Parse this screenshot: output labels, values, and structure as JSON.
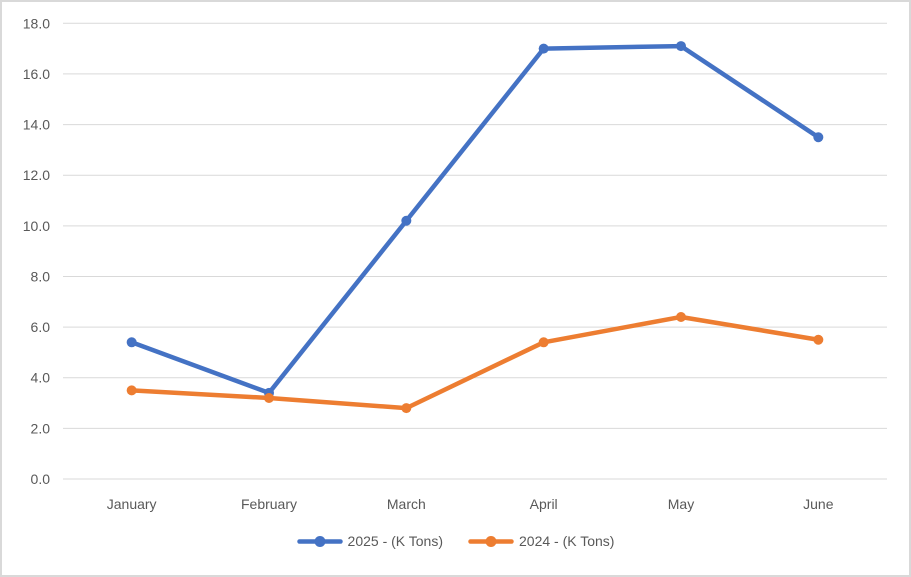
{
  "figure": {
    "background_color": "#FFFFFF",
    "border_color": "#D9D9D9",
    "gridline_color": "#D9D9D9",
    "axis_line_color": "#D9D9D9",
    "label_color": "#595959"
  },
  "chart_data": {
    "type": "line",
    "title": "",
    "xlabel": "",
    "ylabel": "",
    "categories": [
      "January",
      "February",
      "March",
      "April",
      "May",
      "June"
    ],
    "series": [
      {
        "name": "2025 - (K Tons)",
        "color": "#4472C4",
        "values": [
          5.4,
          3.4,
          10.2,
          17.0,
          17.1,
          13.5
        ]
      },
      {
        "name": "2024 - (K Tons)",
        "color": "#ED7D31",
        "values": [
          3.5,
          3.2,
          2.8,
          5.4,
          6.4,
          5.5
        ]
      }
    ],
    "ylim": [
      0,
      18
    ],
    "ytick_step": 2,
    "ytick_labels": [
      "0.0",
      "2.0",
      "4.0",
      "6.0",
      "8.0",
      "10.0",
      "12.0",
      "14.0",
      "16.0",
      "18.0"
    ],
    "grid": true,
    "legend_position": "bottom-center",
    "marker_style": "circle"
  }
}
